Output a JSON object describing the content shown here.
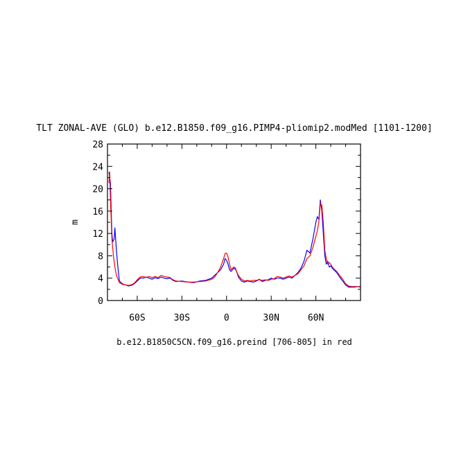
{
  "chart_data": {
    "type": "line",
    "title": "TLT ZONAL-AVE (GLO) b.e12.B1850.f09_g16.PIMP4-pliomip2.modMed [1101-1200]",
    "subtitle": "b.e12.B1850C5CN.f09_g16.preind [706-805] in red",
    "ylabel": "m",
    "xlim": [
      -80,
      90
    ],
    "ylim": [
      0,
      28
    ],
    "xticks": [
      {
        "value": -60,
        "label": "60S"
      },
      {
        "value": -30,
        "label": "30S"
      },
      {
        "value": 0,
        "label": "0"
      },
      {
        "value": 30,
        "label": "30N"
      },
      {
        "value": 60,
        "label": "60N"
      }
    ],
    "yticks": [
      0,
      4,
      8,
      12,
      16,
      20,
      24,
      28
    ],
    "series": [
      {
        "color": "#0000ff",
        "points": [
          [
            -79,
            23
          ],
          [
            -78,
            21
          ],
          [
            -77.5,
            16
          ],
          [
            -77,
            12
          ],
          [
            -76.5,
            10.5
          ],
          [
            -75.5,
            11
          ],
          [
            -75,
            13
          ],
          [
            -74.5,
            11
          ],
          [
            -74,
            9
          ],
          [
            -73,
            6
          ],
          [
            -72,
            3.5
          ],
          [
            -70,
            3
          ],
          [
            -68,
            2.8
          ],
          [
            -66,
            2.6
          ],
          [
            -64,
            2.7
          ],
          [
            -62,
            3
          ],
          [
            -60,
            3.5
          ],
          [
            -58,
            4
          ],
          [
            -56,
            4
          ],
          [
            -54,
            4.2
          ],
          [
            -52,
            4
          ],
          [
            -50,
            3.8
          ],
          [
            -48,
            4.1
          ],
          [
            -46,
            3.9
          ],
          [
            -44,
            4.2
          ],
          [
            -42,
            4
          ],
          [
            -40,
            3.9
          ],
          [
            -38,
            4
          ],
          [
            -36,
            3.6
          ],
          [
            -34,
            3.4
          ],
          [
            -30,
            3.5
          ],
          [
            -26,
            3.3
          ],
          [
            -22,
            3.2
          ],
          [
            -18,
            3.5
          ],
          [
            -14,
            3.6
          ],
          [
            -10,
            4
          ],
          [
            -8,
            4.5
          ],
          [
            -6,
            5
          ],
          [
            -4,
            5.5
          ],
          [
            -2,
            6.5
          ],
          [
            -1,
            7.5
          ],
          [
            0,
            7.2
          ],
          [
            1,
            6.5
          ],
          [
            2,
            5.5
          ],
          [
            3,
            5.2
          ],
          [
            4,
            5.5
          ],
          [
            5,
            5.8
          ],
          [
            6,
            5.6
          ],
          [
            7,
            5
          ],
          [
            8,
            4.2
          ],
          [
            10,
            3.5
          ],
          [
            12,
            3.3
          ],
          [
            14,
            3.5
          ],
          [
            16,
            3.4
          ],
          [
            18,
            3.3
          ],
          [
            20,
            3.5
          ],
          [
            22,
            3.8
          ],
          [
            24,
            3.4
          ],
          [
            26,
            3.6
          ],
          [
            28,
            3.7
          ],
          [
            30,
            4
          ],
          [
            32,
            3.8
          ],
          [
            34,
            4
          ],
          [
            36,
            4
          ],
          [
            38,
            3.8
          ],
          [
            40,
            4
          ],
          [
            42,
            4.2
          ],
          [
            44,
            4
          ],
          [
            46,
            4.5
          ],
          [
            48,
            5
          ],
          [
            50,
            5.8
          ],
          [
            52,
            7
          ],
          [
            54,
            9
          ],
          [
            56,
            8.5
          ],
          [
            58,
            11
          ],
          [
            60,
            14
          ],
          [
            61,
            15
          ],
          [
            62,
            14.5
          ],
          [
            63,
            18
          ],
          [
            64,
            16
          ],
          [
            65,
            12
          ],
          [
            66,
            8
          ],
          [
            67,
            6.5
          ],
          [
            68,
            7
          ],
          [
            69,
            6
          ],
          [
            70,
            6.2
          ],
          [
            71,
            5.8
          ],
          [
            72,
            5.5
          ],
          [
            74,
            5
          ],
          [
            76,
            4.2
          ],
          [
            78,
            3.5
          ],
          [
            80,
            2.8
          ],
          [
            82,
            2.4
          ],
          [
            84,
            2.4
          ],
          [
            86,
            2.4
          ],
          [
            88,
            2.5
          ],
          [
            90,
            2.4
          ]
        ]
      },
      {
        "color": "#ff0000",
        "points": [
          [
            -79,
            21
          ],
          [
            -78.5,
            23
          ],
          [
            -78,
            18
          ],
          [
            -77,
            11
          ],
          [
            -76,
            8
          ],
          [
            -75,
            6
          ],
          [
            -74,
            4.5
          ],
          [
            -72,
            3.2
          ],
          [
            -70,
            2.9
          ],
          [
            -68,
            2.8
          ],
          [
            -66,
            2.7
          ],
          [
            -64,
            2.8
          ],
          [
            -62,
            3.1
          ],
          [
            -60,
            3.7
          ],
          [
            -58,
            4.2
          ],
          [
            -56,
            4.3
          ],
          [
            -54,
            4.1
          ],
          [
            -52,
            4.3
          ],
          [
            -50,
            4.1
          ],
          [
            -48,
            4.3
          ],
          [
            -46,
            4.1
          ],
          [
            -44,
            4.5
          ],
          [
            -42,
            4.3
          ],
          [
            -40,
            4.2
          ],
          [
            -38,
            4.1
          ],
          [
            -36,
            3.7
          ],
          [
            -34,
            3.5
          ],
          [
            -30,
            3.4
          ],
          [
            -26,
            3.3
          ],
          [
            -22,
            3.3
          ],
          [
            -18,
            3.4
          ],
          [
            -14,
            3.5
          ],
          [
            -10,
            3.8
          ],
          [
            -8,
            4.2
          ],
          [
            -6,
            5
          ],
          [
            -4,
            6
          ],
          [
            -2,
            7.5
          ],
          [
            -1,
            8.4
          ],
          [
            0,
            8.5
          ],
          [
            1,
            7.8
          ],
          [
            2,
            6.5
          ],
          [
            3,
            5.5
          ],
          [
            4,
            5.8
          ],
          [
            5,
            6
          ],
          [
            6,
            5.8
          ],
          [
            7,
            5
          ],
          [
            8,
            4.5
          ],
          [
            10,
            3.8
          ],
          [
            12,
            3.5
          ],
          [
            14,
            3.6
          ],
          [
            16,
            3.5
          ],
          [
            18,
            3.6
          ],
          [
            20,
            3.6
          ],
          [
            22,
            3.7
          ],
          [
            24,
            3.6
          ],
          [
            26,
            3.7
          ],
          [
            28,
            3.6
          ],
          [
            30,
            3.8
          ],
          [
            32,
            3.9
          ],
          [
            34,
            4.3
          ],
          [
            36,
            4.2
          ],
          [
            38,
            4
          ],
          [
            40,
            4.2
          ],
          [
            42,
            4.4
          ],
          [
            44,
            4.2
          ],
          [
            46,
            4.5
          ],
          [
            48,
            4.8
          ],
          [
            50,
            5.5
          ],
          [
            52,
            6.2
          ],
          [
            54,
            7.5
          ],
          [
            56,
            8
          ],
          [
            58,
            9.5
          ],
          [
            60,
            11.5
          ],
          [
            61,
            12.5
          ],
          [
            62,
            14
          ],
          [
            63,
            17.5
          ],
          [
            64,
            17
          ],
          [
            65,
            14
          ],
          [
            66,
            9
          ],
          [
            67,
            7.5
          ],
          [
            68,
            6.5
          ],
          [
            69,
            6.8
          ],
          [
            70,
            6.5
          ],
          [
            71,
            6
          ],
          [
            72,
            5.7
          ],
          [
            74,
            5.2
          ],
          [
            76,
            4.5
          ],
          [
            78,
            3.8
          ],
          [
            80,
            3
          ],
          [
            82,
            2.6
          ],
          [
            84,
            2.5
          ],
          [
            86,
            2.5
          ],
          [
            88,
            2.5
          ],
          [
            90,
            2.5
          ]
        ]
      }
    ]
  }
}
